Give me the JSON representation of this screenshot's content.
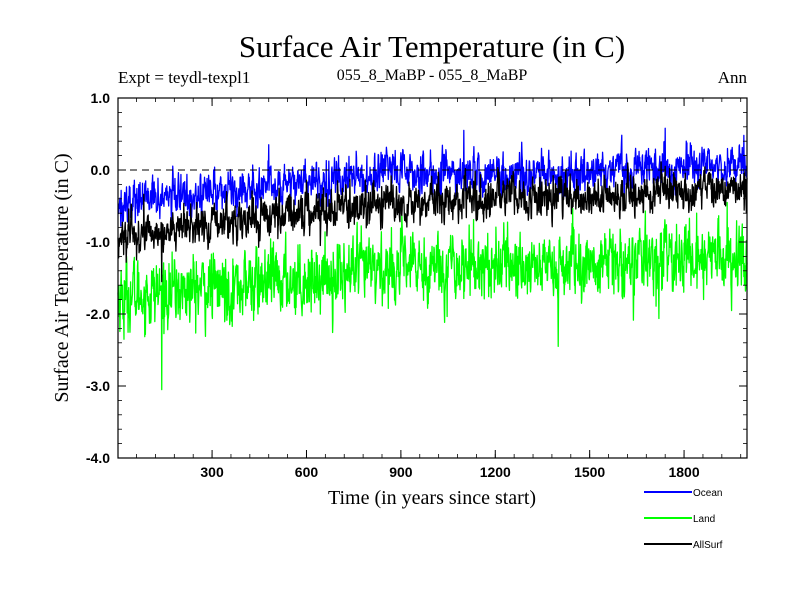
{
  "chart_data": {
    "type": "line",
    "title": "Surface Air Temperature (in C)",
    "subtitle_left": "Expt = teydl-texpl1",
    "subtitle_center": "055_8_MaBP - 055_8_MaBP",
    "subtitle_right": "Ann",
    "xlabel": "Time (in years since start)",
    "ylabel": "Surface Air Temperature (in C)",
    "xlim": [
      1,
      2000
    ],
    "ylim": [
      -4.0,
      1.0
    ],
    "x_ticks": [
      300,
      600,
      900,
      1200,
      1500,
      1800
    ],
    "x_tick_labels": [
      "300",
      "600",
      "900",
      "1200",
      "1500",
      "1800"
    ],
    "y_ticks": [
      1.0,
      0.0,
      -1.0,
      -2.0,
      -3.0,
      -4.0
    ],
    "y_tick_labels": [
      "1.0",
      "0.0",
      "-1.0",
      "-2.0",
      "-3.0",
      "-4.0"
    ],
    "reference_line": 0.0,
    "n_points": 2000,
    "series": [
      {
        "name": "Ocean",
        "color": "#0000ff",
        "trend": [
          [
            1,
            -0.45
          ],
          [
            150,
            -0.38
          ],
          [
            400,
            -0.25
          ],
          [
            600,
            -0.15
          ],
          [
            900,
            -0.05
          ],
          [
            1200,
            -0.05
          ],
          [
            1500,
            -0.05
          ],
          [
            1800,
            0.05
          ],
          [
            2000,
            0.05
          ]
        ],
        "noise": 0.14,
        "extremes": [
          [
            480,
            0.35
          ],
          [
            1100,
            0.55
          ],
          [
            1740,
            0.58
          ],
          [
            1990,
            0.48
          ],
          [
            10,
            -0.78
          ]
        ]
      },
      {
        "name": "Land",
        "color": "#00ff00",
        "trend": [
          [
            1,
            -1.75
          ],
          [
            150,
            -1.7
          ],
          [
            400,
            -1.6
          ],
          [
            600,
            -1.5
          ],
          [
            900,
            -1.35
          ],
          [
            1200,
            -1.3
          ],
          [
            1500,
            -1.35
          ],
          [
            1800,
            -1.2
          ],
          [
            2000,
            -1.25
          ]
        ],
        "noise": 0.24,
        "extremes": [
          [
            140,
            -3.05
          ],
          [
            1400,
            -2.45
          ],
          [
            20,
            -2.35
          ],
          [
            1840,
            -0.6
          ],
          [
            1985,
            -0.75
          ]
        ]
      },
      {
        "name": "AllSurf",
        "color": "#000000",
        "trend": [
          [
            1,
            -0.95
          ],
          [
            150,
            -0.85
          ],
          [
            400,
            -0.7
          ],
          [
            600,
            -0.55
          ],
          [
            900,
            -0.45
          ],
          [
            1200,
            -0.38
          ],
          [
            1500,
            -0.4
          ],
          [
            1800,
            -0.28
          ],
          [
            2000,
            -0.3
          ]
        ],
        "noise": 0.14,
        "extremes": [
          [
            140,
            -1.55
          ],
          [
            1740,
            0.05
          ],
          [
            1990,
            -0.05
          ],
          [
            60,
            -1.25
          ]
        ]
      }
    ],
    "legend": [
      {
        "label": "Ocean",
        "color": "#0000ff"
      },
      {
        "label": "Land",
        "color": "#00ff00"
      },
      {
        "label": "AllSurf",
        "color": "#000000"
      }
    ]
  }
}
